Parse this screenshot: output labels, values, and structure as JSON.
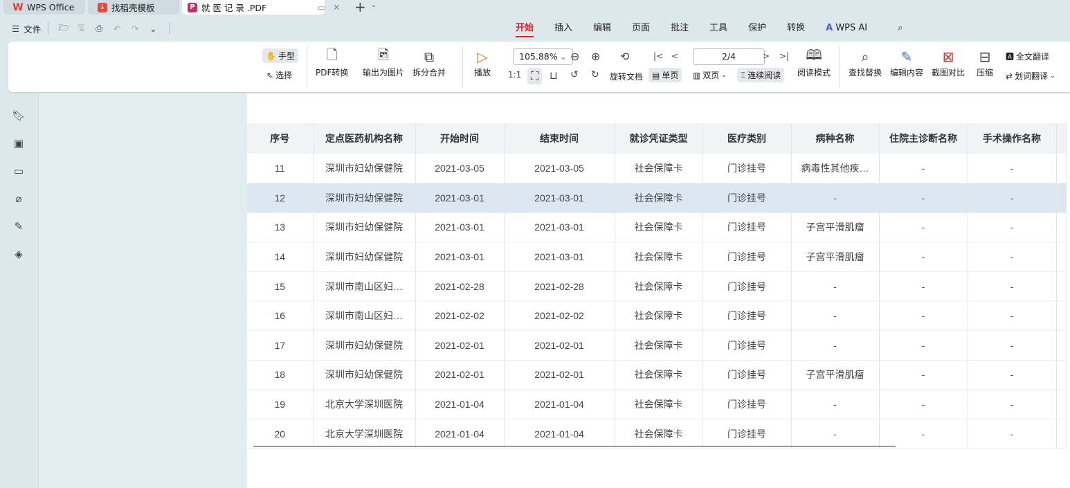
{
  "tabs": [
    {
      "label": "WPS Office",
      "color": "#e03a2f"
    },
    {
      "label": "找稻壳模板",
      "color": "#e5483c"
    },
    {
      "label": "就 医 记 录 .PDF",
      "color": "#d4246a",
      "active": true
    }
  ],
  "quick": {
    "file": "文件"
  },
  "menus": [
    "开始",
    "插入",
    "编辑",
    "页面",
    "批注",
    "工具",
    "保护",
    "转换",
    "WPS AI"
  ],
  "ribbon": {
    "hand": "手型",
    "select": "选择",
    "pdf_convert": "PDF转换",
    "export_image": "输出为图片",
    "split_merge": "拆分合并",
    "play": "播放",
    "zoom": "105.88%",
    "rotate": "旋转文档",
    "single": "单页",
    "double": "双页",
    "continuous": "连续阅读",
    "page": "2/4",
    "read_mode": "阅读模式",
    "find": "查找替换",
    "edit": "编辑内容",
    "compare": "截图对比",
    "compress": "压缩",
    "full_translate": "全文翻译",
    "word_translate": "划词翻译"
  },
  "table": {
    "headers": [
      "序号",
      "定点医药机构名称",
      "开始时间",
      "结束时间",
      "就诊凭证类型",
      "医疗类别",
      "病种名称",
      "住院主诊断名称",
      "手术操作名称"
    ],
    "rows": [
      [
        "11",
        "深圳市妇幼保健院",
        "2021-03-05",
        "2021-03-05",
        "社会保障卡",
        "门诊挂号",
        "病毒性其他疾…",
        "-",
        "-"
      ],
      [
        "12",
        "深圳市妇幼保健院",
        "2021-03-01",
        "2021-03-01",
        "社会保障卡",
        "门诊挂号",
        "-",
        "-",
        "-"
      ],
      [
        "13",
        "深圳市妇幼保健院",
        "2021-03-01",
        "2021-03-01",
        "社会保障卡",
        "门诊挂号",
        "子宫平滑肌瘤",
        "-",
        "-"
      ],
      [
        "14",
        "深圳市妇幼保健院",
        "2021-03-01",
        "2021-03-01",
        "社会保障卡",
        "门诊挂号",
        "子宫平滑肌瘤",
        "-",
        "-"
      ],
      [
        "15",
        "深圳市南山区妇…",
        "2021-02-28",
        "2021-02-28",
        "社会保障卡",
        "门诊挂号",
        "-",
        "-",
        "-"
      ],
      [
        "16",
        "深圳市南山区妇…",
        "2021-02-02",
        "2021-02-02",
        "社会保障卡",
        "门诊挂号",
        "-",
        "-",
        "-"
      ],
      [
        "17",
        "深圳市妇幼保健院",
        "2021-02-01",
        "2021-02-01",
        "社会保障卡",
        "门诊挂号",
        "-",
        "-",
        "-"
      ],
      [
        "18",
        "深圳市妇幼保健院",
        "2021-02-01",
        "2021-02-01",
        "社会保障卡",
        "门诊挂号",
        "子宫平滑肌瘤",
        "-",
        "-"
      ],
      [
        "19",
        "北京大学深圳医院",
        "2021-01-04",
        "2021-01-04",
        "社会保障卡",
        "门诊挂号",
        "-",
        "-",
        "-"
      ],
      [
        "20",
        "北京大学深圳医院",
        "2021-01-04",
        "2021-01-04",
        "社会保障卡",
        "门诊挂号",
        "-",
        "-",
        "-"
      ]
    ],
    "highlight_row": 1
  },
  "accent": "#dd2222"
}
